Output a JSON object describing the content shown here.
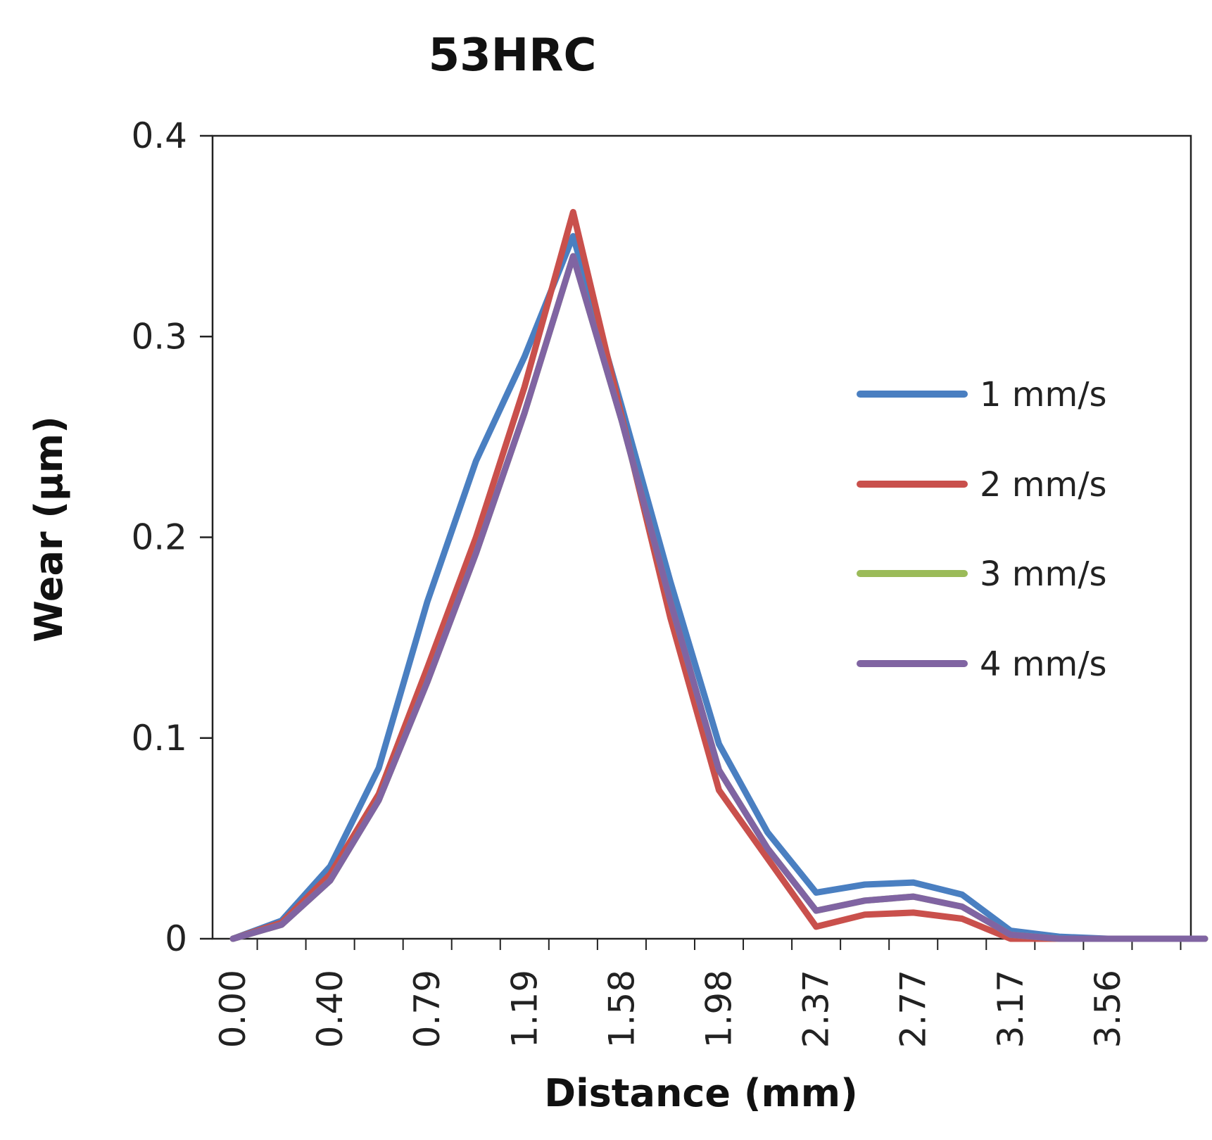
{
  "chart_data": {
    "type": "line",
    "title": "53HRC",
    "xlabel": "Distance (mm)",
    "ylabel": "Wear (µm)",
    "ylim": [
      0,
      0.4
    ],
    "yticks": [
      "0",
      "0.1",
      "0.2",
      "0.3",
      "0.4"
    ],
    "x": [
      0.0,
      0.2,
      0.4,
      0.59,
      0.79,
      0.99,
      1.19,
      1.39,
      1.58,
      1.78,
      1.98,
      2.18,
      2.37,
      2.57,
      2.77,
      2.97,
      3.17,
      3.37,
      3.56,
      3.76,
      3.96
    ],
    "xtick_labels": [
      "0.00",
      "0.40",
      "0.79",
      "1.19",
      "1.58",
      "1.98",
      "2.37",
      "2.77",
      "3.17",
      "3.56"
    ],
    "grid": false,
    "legend_position": "right",
    "series": [
      {
        "name": "1 mm/s",
        "color": "#4a7fc1",
        "values": [
          0,
          0.009,
          0.036,
          0.085,
          0.168,
          0.238,
          0.29,
          0.35,
          0.265,
          0.178,
          0.097,
          0.053,
          0.023,
          0.027,
          0.028,
          0.022,
          0.004,
          0.001,
          0,
          0,
          0
        ]
      },
      {
        "name": "2 mm/s",
        "color": "#c9504c",
        "values": [
          0,
          0.008,
          0.032,
          0.072,
          0.135,
          0.2,
          0.275,
          0.362,
          0.26,
          0.16,
          0.074,
          0.04,
          0.006,
          0.012,
          0.013,
          0.01,
          0,
          0,
          0,
          0,
          0
        ]
      },
      {
        "name": "3 mm/s",
        "color": "#9bbb59",
        "values": [
          0,
          0.007,
          0.029,
          0.069,
          0.128,
          0.192,
          0.262,
          0.34,
          0.258,
          0.168,
          0.084,
          0.045,
          0.014,
          0.019,
          0.021,
          0.016,
          0.002,
          0,
          0,
          0,
          0
        ]
      },
      {
        "name": "4 mm/s",
        "color": "#8064a2",
        "values": [
          0,
          0.007,
          0.029,
          0.069,
          0.128,
          0.192,
          0.262,
          0.34,
          0.258,
          0.168,
          0.084,
          0.045,
          0.014,
          0.019,
          0.021,
          0.016,
          0.002,
          0,
          0,
          0,
          0
        ]
      }
    ]
  }
}
